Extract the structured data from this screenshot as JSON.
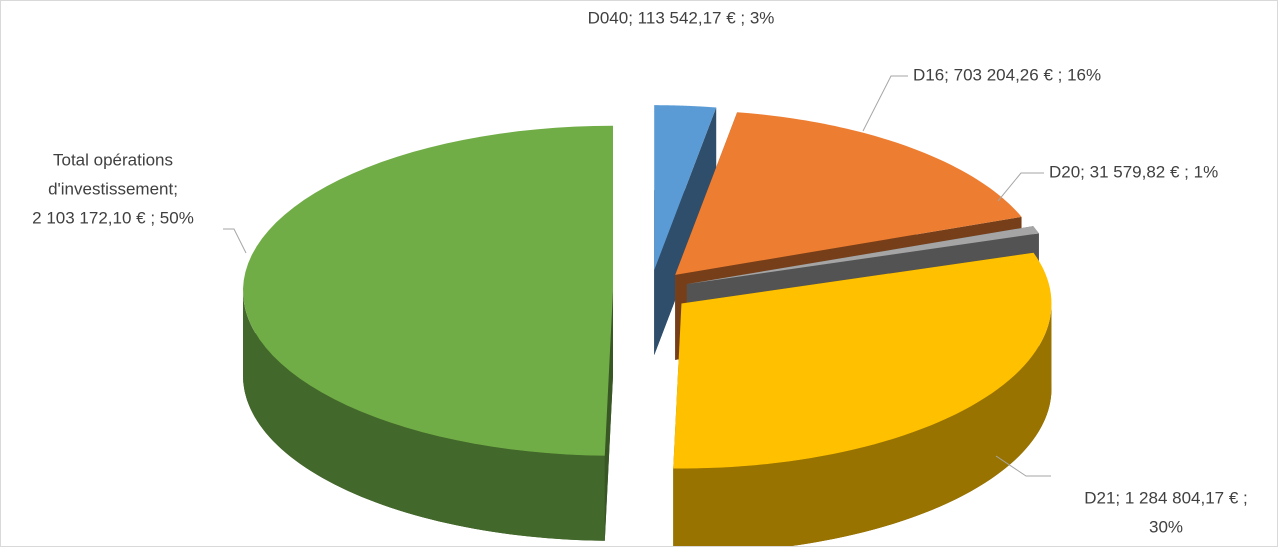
{
  "chart_data": {
    "type": "pie",
    "labels": [
      [
        "D040;  113 542,17 € ; 3%"
      ],
      [
        "D16;  703 204,26 € ; 16%"
      ],
      [
        "D20;  31 579,82 € ; 1%"
      ],
      [
        "D21;  1 284 804,17 € ;",
        "30%"
      ],
      [
        "Total opérations",
        "d'investissement;",
        "2 103 172,10 € ; 50%"
      ]
    ],
    "values": [
      113542.17,
      703204.26,
      31579.82,
      1284804.17,
      2103172.1
    ],
    "colors": [
      "#5b9bd5",
      "#ed7d31",
      "#a5a5a5",
      "#ffc000",
      "#70ad47"
    ]
  }
}
